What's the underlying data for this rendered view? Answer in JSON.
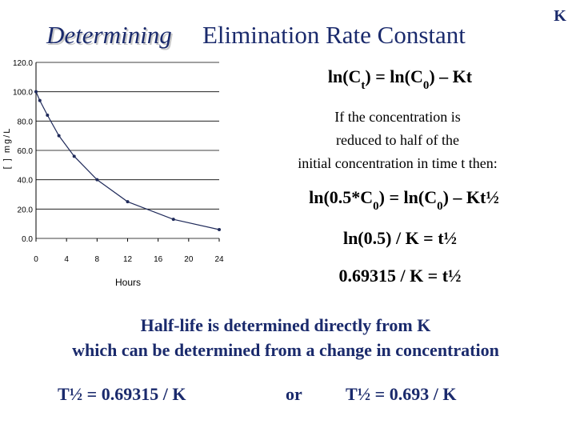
{
  "slide": {
    "title": [
      "Determining",
      "Elimination Rate Constant"
    ],
    "corner": "K",
    "equation1": [
      "ln(C",
      "t",
      ") = ln(C",
      "0",
      ") – Kt"
    ],
    "paragraph": [
      "If the concentration is",
      "reduced to half of the",
      "initial concentration in time t then:"
    ],
    "equation2": [
      "ln(0.5*C",
      "0",
      ") = ln(C",
      "0",
      ") – Kt½"
    ],
    "equation3": "ln(0.5) / K =  t½",
    "equation4": "0.69315 / K =  t½",
    "summary": [
      "Half-life is determined directly from K",
      "which can be determined from a change in concentration"
    ],
    "formula_left": "T½ = 0.69315 / K",
    "or": "or",
    "formula_right": "T½ = 0.693 / K"
  },
  "chart_data": {
    "type": "line",
    "x_label": "Hours",
    "y_label": "[ ] mg/L",
    "x": [
      0,
      0.5,
      1.5,
      3,
      5,
      8,
      12,
      18,
      24
    ],
    "values": [
      100,
      94,
      84,
      70,
      56,
      40,
      25,
      13,
      6
    ],
    "color": "#1f2a5a",
    "xlim": [
      0,
      24
    ],
    "xticks": [
      0,
      4,
      8,
      12,
      16,
      20,
      24
    ],
    "ylim": [
      0,
      120
    ],
    "yticks": [
      {
        "value": 0,
        "label": "0.0"
      },
      {
        "value": 20,
        "label": "20.0"
      },
      {
        "value": 40,
        "label": "40.0"
      },
      {
        "value": 60,
        "label": "60.0"
      },
      {
        "value": 80,
        "label": "80.0"
      },
      {
        "value": 100,
        "label": "100.0"
      },
      {
        "value": 120,
        "label": "120.0"
      }
    ],
    "grid": true
  }
}
